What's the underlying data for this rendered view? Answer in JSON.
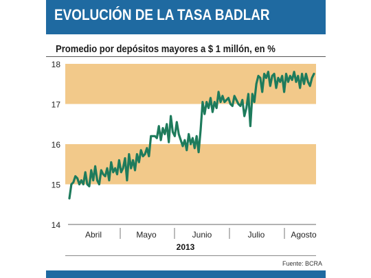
{
  "header": {
    "title": "EVOLUCIÓN DE LA TASA BADLAR"
  },
  "footer": {
    "year": "2013",
    "source": "Fuente: BCRA"
  },
  "colors": {
    "brand": "#1f6aa1",
    "band": "#f2c98a",
    "line": "#1e7b5c"
  },
  "chart_data": {
    "type": "line",
    "title": "Promedio por depósitos mayores a $ 1 millón, en %",
    "xlabel": "2013",
    "ylabel": "",
    "ylim": [
      14,
      18
    ],
    "yticks": [
      14,
      15,
      16,
      17,
      18
    ],
    "grid": false,
    "shaded_bands": [
      [
        15,
        16
      ],
      [
        17,
        18
      ]
    ],
    "months": [
      "Abril",
      "Mayo",
      "Junio",
      "Julio",
      "Agosto"
    ],
    "series": [
      {
        "values": [
          14.65,
          15.0,
          15.05,
          15.2,
          15.15,
          15.0,
          15.1,
          15.0,
          15.3,
          15.0,
          14.95,
          15.35,
          15.1,
          15.45,
          15.1,
          15.0,
          15.35,
          15.25,
          15.2,
          15.4,
          15.1,
          15.55,
          15.3,
          15.4,
          15.25,
          15.6,
          15.3,
          15.4,
          15.65,
          15.1,
          15.75,
          15.4,
          15.6,
          15.35,
          15.75,
          15.55,
          15.85,
          15.7,
          15.75,
          15.9,
          15.7,
          16.2,
          16.2,
          16.2,
          16.15,
          16.45,
          16.1,
          16.4,
          16.25,
          16.5,
          16.05,
          16.7,
          16.3,
          16.2,
          16.55,
          16.25,
          16.1,
          15.95,
          16.1,
          15.85,
          16.25,
          16.0,
          16.15,
          15.9,
          16.2,
          15.8,
          16.35,
          17.05,
          16.75,
          17.05,
          16.9,
          17.15,
          16.8,
          17.05,
          16.9,
          17.3,
          17.05,
          17.2,
          17.05,
          17.1,
          17.15,
          17.0,
          16.95,
          17.2,
          17.1,
          17.0,
          16.95,
          17.1,
          16.7,
          16.9,
          17.25,
          16.45,
          17.25,
          17.05,
          17.5,
          17.7,
          17.65,
          17.3,
          17.75,
          17.65,
          17.8,
          17.45,
          17.7,
          17.75,
          17.4,
          17.65,
          17.55,
          17.7,
          17.3,
          17.75,
          17.55,
          17.7,
          17.6,
          17.8,
          17.55,
          17.7,
          17.4,
          17.75,
          17.5,
          17.75,
          17.55,
          17.45,
          17.65,
          17.75
        ]
      }
    ]
  }
}
